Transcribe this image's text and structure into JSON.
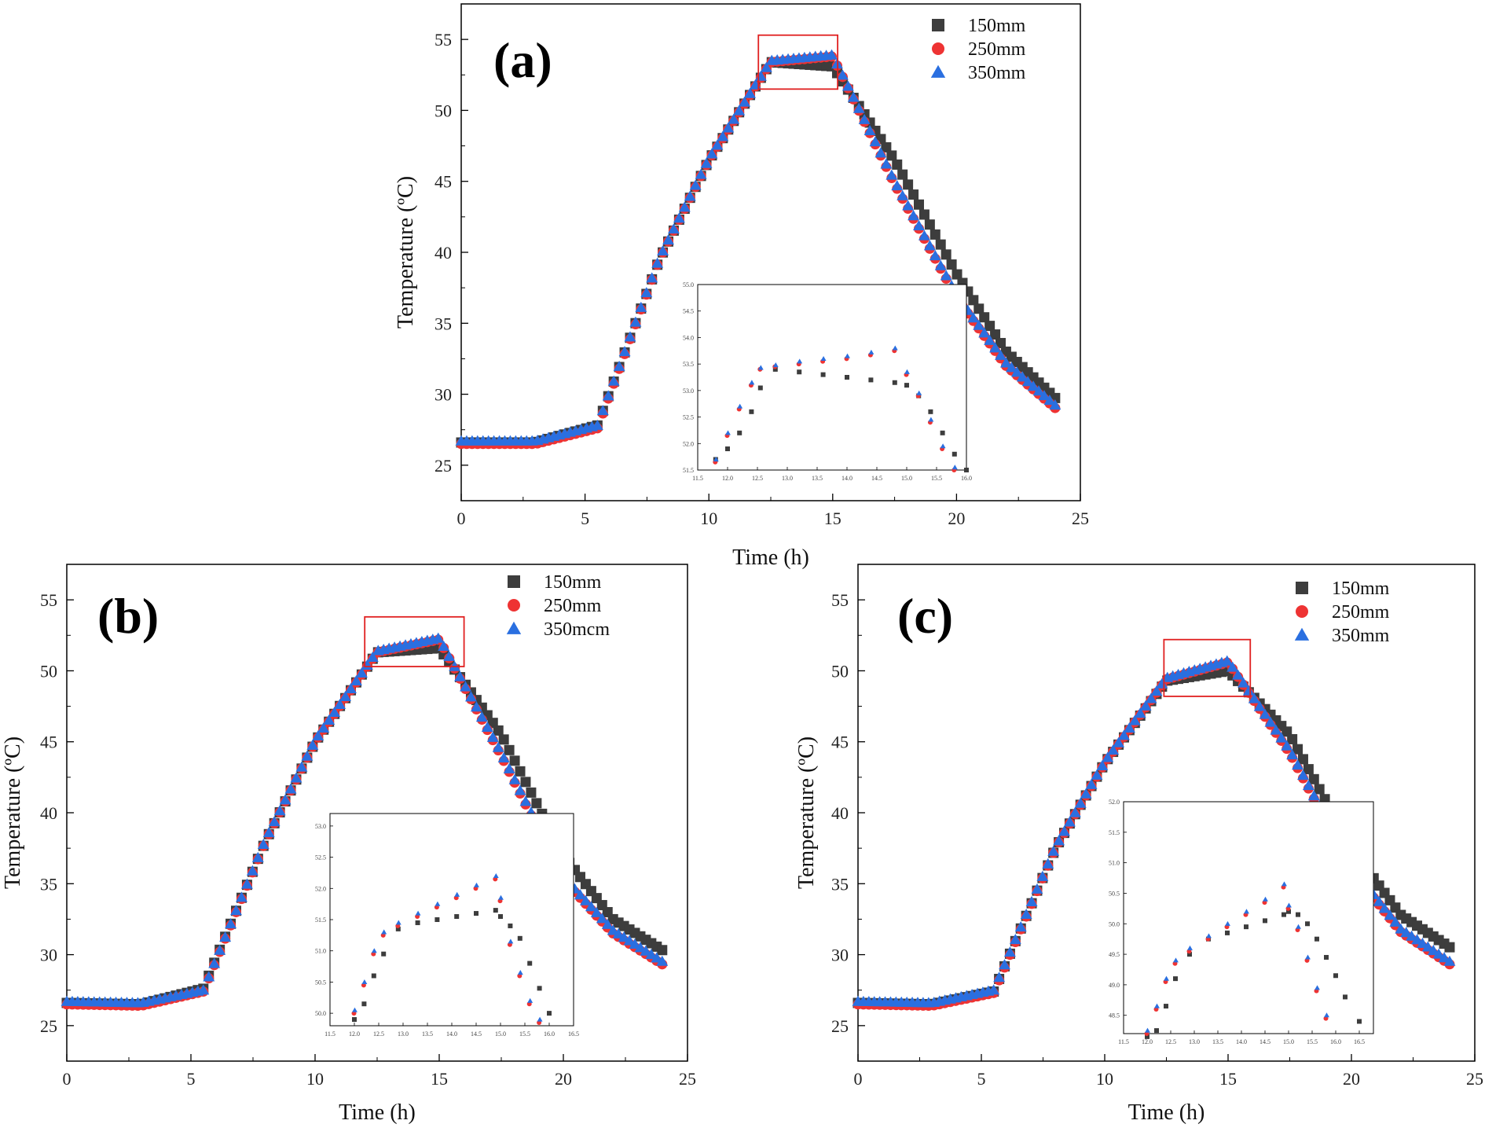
{
  "colors": {
    "series_150": "#3d3d3d",
    "series_250": "#ee3333",
    "series_350": "#2a6fe0",
    "highlight_box": "#e02020"
  },
  "chart_data": [
    {
      "panel": "(a)",
      "type": "scatter",
      "xlabel": "Time (h)",
      "ylabel": "Temperature (ºC)",
      "xlim": [
        0,
        25
      ],
      "ylim": [
        22.5,
        57.5
      ],
      "xticks": [
        0,
        5,
        10,
        15,
        20,
        25
      ],
      "yticks": [
        25,
        30,
        35,
        40,
        45,
        50,
        55
      ],
      "legend_position": "top-right",
      "grid": false,
      "series": [
        {
          "name": "150mm",
          "marker": "square",
          "color": "#3d3d3d",
          "x": [
            0,
            3,
            5.5,
            8,
            10,
            12.5,
            15,
            17.5,
            20,
            22,
            24
          ],
          "y": [
            26.6,
            26.6,
            27.8,
            39.5,
            46.5,
            53.4,
            53.1,
            46.5,
            38.5,
            33,
            29.7
          ]
        },
        {
          "name": "250mm",
          "marker": "circle",
          "color": "#ee3333",
          "x": [
            0,
            3,
            5.5,
            8,
            10,
            12.5,
            15,
            17.5,
            20,
            22,
            24
          ],
          "y": [
            26.5,
            26.5,
            27.6,
            39.5,
            46.5,
            53.4,
            53.8,
            44.8,
            36.8,
            32,
            29.0
          ]
        },
        {
          "name": "350mm",
          "marker": "triangle",
          "color": "#2a6fe0",
          "x": [
            0,
            3,
            5.5,
            8,
            10,
            12.5,
            15,
            17.5,
            20,
            22,
            24
          ],
          "y": [
            26.7,
            26.7,
            27.8,
            39.6,
            46.6,
            53.5,
            53.9,
            45.0,
            37.0,
            32.2,
            29.2
          ]
        }
      ],
      "highlight_box": {
        "x": [
          12,
          15.2
        ],
        "y": [
          51.5,
          55.3
        ]
      },
      "inset": {
        "xlim": [
          11.5,
          16.0
        ],
        "ylim": [
          51.5,
          55.0
        ],
        "xticks": [
          "11.5",
          "12.0",
          "12.5",
          "13.0",
          "13.5",
          "14.0",
          "14.5",
          "15.0",
          "15.5",
          "16.0"
        ],
        "yticks": [
          "51.5",
          "52.0",
          "52.5",
          "53.0",
          "53.5",
          "54.0",
          "54.5",
          "55.0"
        ],
        "series_x": [
          11.8,
          12.0,
          12.2,
          12.4,
          12.55,
          12.8,
          13.2,
          13.6,
          14.0,
          14.4,
          14.8,
          15.0,
          15.2,
          15.4,
          15.6,
          15.8,
          16.0
        ],
        "s150": [
          51.7,
          51.9,
          52.2,
          52.6,
          53.05,
          53.4,
          53.35,
          53.3,
          53.25,
          53.2,
          53.15,
          53.1,
          52.9,
          52.6,
          52.2,
          51.8,
          51.5
        ],
        "s250": [
          51.65,
          52.15,
          52.65,
          53.1,
          53.4,
          53.45,
          53.5,
          53.55,
          53.6,
          53.67,
          53.75,
          53.3,
          52.9,
          52.4,
          51.9,
          51.5,
          null
        ],
        "s350": [
          51.7,
          52.2,
          52.7,
          53.15,
          53.43,
          53.48,
          53.55,
          53.6,
          53.65,
          53.72,
          53.8,
          53.35,
          52.95,
          52.45,
          51.95,
          51.55,
          null
        ]
      }
    },
    {
      "panel": "(b)",
      "type": "scatter",
      "xlabel": "Time (h)",
      "ylabel": "Temperature (ºC)",
      "xlim": [
        0,
        25
      ],
      "ylim": [
        22.5,
        57.5
      ],
      "xticks": [
        0,
        5,
        10,
        15,
        20,
        25
      ],
      "yticks": [
        25,
        30,
        35,
        40,
        45,
        50,
        55
      ],
      "legend_position": "top-right",
      "grid": false,
      "series": [
        {
          "name": "150mm",
          "marker": "square",
          "color": "#3d3d3d",
          "x": [
            0,
            3,
            5.5,
            8,
            10,
            12.5,
            15,
            17.5,
            20,
            22,
            24
          ],
          "y": [
            26.6,
            26.5,
            27.6,
            38.0,
            45.0,
            51.3,
            51.6,
            45.5,
            37.0,
            32.5,
            30.3
          ]
        },
        {
          "name": "250mm",
          "marker": "circle",
          "color": "#ee3333",
          "x": [
            0,
            3,
            5.5,
            8,
            10,
            12.5,
            15,
            17.5,
            20,
            22,
            24
          ],
          "y": [
            26.5,
            26.4,
            27.4,
            38.0,
            45.0,
            51.3,
            52.2,
            44.0,
            35.3,
            31.5,
            29.3
          ]
        },
        {
          "name": "350mcm",
          "marker": "triangle",
          "color": "#2a6fe0",
          "x": [
            0,
            3,
            5.5,
            8,
            10,
            12.5,
            15,
            17.5,
            20,
            22,
            24
          ],
          "y": [
            26.7,
            26.6,
            27.5,
            38.1,
            45.1,
            51.4,
            52.3,
            44.2,
            35.5,
            31.7,
            29.5
          ]
        }
      ],
      "highlight_box": {
        "x": [
          12,
          16
        ],
        "y": [
          50.3,
          53.8
        ]
      },
      "inset": {
        "xlim": [
          11.5,
          16.5
        ],
        "ylim": [
          49.8,
          53.2
        ],
        "xticks": [
          "11.5",
          "12.0",
          "12.5",
          "13.0",
          "13.5",
          "14.0",
          "14.5",
          "15.0",
          "15.5",
          "16.0",
          "16.5"
        ],
        "yticks": [
          "50.0",
          "50.5",
          "51.0",
          "51.5",
          "52.0",
          "52.5",
          "53.0"
        ],
        "series_x": [
          12.0,
          12.2,
          12.4,
          12.6,
          12.9,
          13.3,
          13.7,
          14.1,
          14.5,
          14.9,
          15.0,
          15.2,
          15.4,
          15.6,
          15.8,
          16.0
        ],
        "s150": [
          49.9,
          50.15,
          50.6,
          50.95,
          51.35,
          51.45,
          51.5,
          51.55,
          51.6,
          51.65,
          51.55,
          51.4,
          51.2,
          50.8,
          50.4,
          50.0
        ],
        "s250": [
          50.0,
          50.45,
          50.95,
          51.25,
          51.4,
          51.55,
          51.7,
          51.85,
          52.0,
          52.15,
          51.8,
          51.1,
          50.6,
          50.15,
          49.85,
          null
        ],
        "s350": [
          50.05,
          50.5,
          51.0,
          51.3,
          51.45,
          51.6,
          51.75,
          51.9,
          52.05,
          52.2,
          51.85,
          51.15,
          50.65,
          50.2,
          49.9,
          null
        ]
      }
    },
    {
      "panel": "(c)",
      "type": "scatter",
      "xlabel": "Time (h)",
      "ylabel": "Temperature (ºC)",
      "xlim": [
        0,
        25
      ],
      "ylim": [
        22.5,
        57.5
      ],
      "xticks": [
        0,
        5,
        10,
        15,
        20,
        25
      ],
      "yticks": [
        25,
        30,
        35,
        40,
        45,
        50,
        55
      ],
      "legend_position": "top-right",
      "grid": false,
      "series": [
        {
          "name": "150mm",
          "marker": "square",
          "color": "#3d3d3d",
          "x": [
            0,
            3,
            5.5,
            8,
            10,
            12.5,
            15,
            17.5,
            20,
            22,
            24
          ],
          "y": [
            26.6,
            26.5,
            27.4,
            37.5,
            43.5,
            49.3,
            50.0,
            45.5,
            37.5,
            32.8,
            30.5
          ]
        },
        {
          "name": "250mm",
          "marker": "circle",
          "color": "#ee3333",
          "x": [
            0,
            3,
            5.5,
            8,
            10,
            12.5,
            15,
            17.5,
            20,
            22,
            24
          ],
          "y": [
            26.5,
            26.4,
            27.3,
            37.5,
            43.5,
            49.4,
            50.6,
            44.2,
            36.0,
            31.6,
            29.3
          ]
        },
        {
          "name": "350mm",
          "marker": "triangle",
          "color": "#2a6fe0",
          "x": [
            0,
            3,
            5.5,
            8,
            10,
            12.5,
            15,
            17.5,
            20,
            22,
            24
          ],
          "y": [
            26.7,
            26.6,
            27.5,
            37.6,
            43.6,
            49.5,
            50.7,
            44.4,
            36.2,
            31.8,
            29.5
          ]
        }
      ],
      "highlight_box": {
        "x": [
          12.4,
          15.9
        ],
        "y": [
          48.2,
          52.2
        ]
      },
      "inset": {
        "xlim": [
          11.5,
          16.8
        ],
        "ylim": [
          48.2,
          52.0
        ],
        "xticks": [
          "11.5",
          "12.0",
          "12.5",
          "13.0",
          "13.5",
          "14.0",
          "14.5",
          "15.0",
          "15.5",
          "16.0",
          "16.5"
        ],
        "yticks": [
          "48.5",
          "49.0",
          "49.5",
          "50.0",
          "50.5",
          "51.0",
          "51.5",
          "52.0"
        ],
        "series_x": [
          12.0,
          12.2,
          12.4,
          12.6,
          12.9,
          13.3,
          13.7,
          14.1,
          14.5,
          14.9,
          15.0,
          15.2,
          15.4,
          15.6,
          15.8,
          16.0,
          16.2,
          16.5
        ],
        "s150": [
          48.15,
          48.25,
          48.65,
          49.1,
          49.5,
          49.75,
          49.85,
          49.95,
          50.05,
          50.15,
          50.2,
          50.15,
          50.0,
          49.75,
          49.45,
          49.15,
          48.8,
          48.4
        ],
        "s250": [
          48.2,
          48.6,
          49.05,
          49.35,
          49.55,
          49.75,
          49.95,
          50.15,
          50.35,
          50.6,
          50.25,
          49.9,
          49.4,
          48.9,
          48.45,
          null,
          null,
          null
        ],
        "s350": [
          48.25,
          48.65,
          49.1,
          49.4,
          49.6,
          49.8,
          50.0,
          50.2,
          50.4,
          50.65,
          50.3,
          49.95,
          49.45,
          48.95,
          48.5,
          null,
          null,
          null
        ]
      }
    }
  ]
}
